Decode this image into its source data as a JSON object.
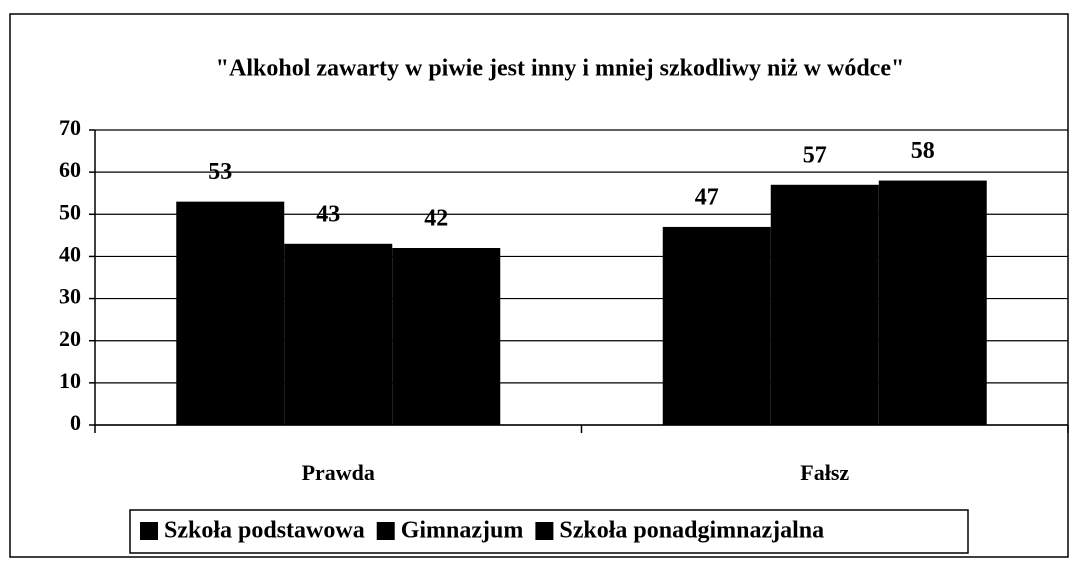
{
  "chart_data": {
    "type": "bar",
    "title": "\"Alkohol zawarty w piwie jest inny i mniej szkodliwy niż w wódce\"",
    "categories": [
      "Prawda",
      "Fałsz"
    ],
    "series": [
      {
        "name": "Szkoła podstawowa",
        "color": "#000000",
        "values": [
          53,
          47
        ]
      },
      {
        "name": "Gimnazjum",
        "color": "#000000",
        "values": [
          43,
          57
        ]
      },
      {
        "name": "Szkoła ponadgimnazjalna",
        "color": "#000000",
        "values": [
          42,
          58
        ]
      }
    ],
    "ylim": [
      0,
      70
    ],
    "yticks": [
      0,
      10,
      20,
      30,
      40,
      50,
      60,
      70
    ],
    "grid": true,
    "legend": "bottom"
  }
}
